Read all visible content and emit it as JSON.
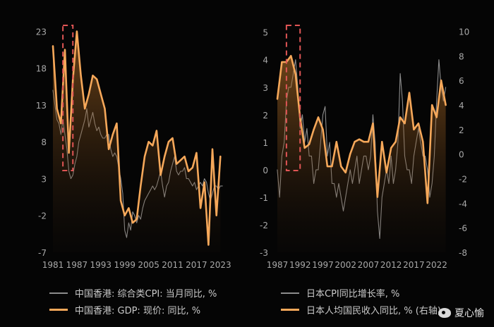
{
  "chart_data": [
    {
      "type": "line",
      "x_ticks": [
        "1981",
        "1987",
        "1993",
        "1999",
        "2005",
        "2011",
        "2017",
        "2023"
      ],
      "y_ticks": [
        -7,
        -2,
        3,
        8,
        13,
        18,
        23
      ],
      "ylim": [
        -7,
        24
      ],
      "xlim": [
        1981,
        2024
      ],
      "highlight_x": [
        1983.5,
        1986
      ],
      "series": [
        {
          "name": "中国香港: 综合类CPI: 当月同比, %",
          "color": "#8c8c8c",
          "x": [
            1981,
            1981.5,
            1982,
            1982.5,
            1983,
            1983.5,
            1984,
            1984.5,
            1985,
            1985.5,
            1986,
            1986.5,
            1987,
            1987.5,
            1988,
            1988.5,
            1989,
            1989.5,
            1990,
            1990.5,
            1991,
            1991.5,
            1992,
            1992.5,
            1993,
            1993.5,
            1994,
            1994.5,
            1995,
            1995.5,
            1996,
            1996.5,
            1997,
            1997.5,
            1998,
            1998.5,
            1999,
            1999.5,
            2000,
            2000.5,
            2001,
            2001.5,
            2002,
            2002.5,
            2003,
            2003.5,
            2004,
            2004.5,
            2005,
            2005.5,
            2006,
            2006.5,
            2007,
            2007.5,
            2008,
            2008.5,
            2009,
            2009.5,
            2010,
            2010.5,
            2011,
            2011.5,
            2012,
            2012.5,
            2013,
            2013.5,
            2014,
            2014.5,
            2015,
            2015.5,
            2016,
            2016.5,
            2017,
            2017.5,
            2018,
            2018.5,
            2019,
            2019.5,
            2020,
            2020.5,
            2021,
            2021.5,
            2022,
            2022.5,
            2023,
            2023.5
          ],
          "values": [
            15,
            13,
            11,
            10.5,
            9,
            11,
            9,
            7,
            4,
            3,
            3.5,
            5,
            6,
            8,
            9,
            10,
            11,
            12.5,
            10,
            11,
            12,
            10.5,
            9.5,
            10,
            9,
            8.5,
            8.5,
            9,
            9,
            7,
            6,
            6.5,
            6,
            4.5,
            3,
            1,
            -4,
            -5,
            -3,
            -4,
            -1.5,
            -2,
            -3,
            -2,
            -2.5,
            -1,
            0,
            0.5,
            1,
            1.5,
            2,
            1.5,
            2,
            3,
            4,
            2,
            0.5,
            2,
            2.5,
            4,
            5,
            6,
            4,
            3.5,
            4,
            4,
            4.5,
            3,
            3,
            2.5,
            2,
            2.5,
            1.5,
            2,
            2.5,
            2,
            3,
            2.5,
            1,
            0,
            1,
            2,
            2,
            1.5,
            2,
            2
          ]
        },
        {
          "name": "中国香港: GDP: 现价: 同比, %",
          "color": "#f6a85a",
          "x": [
            1981,
            1982,
            1983,
            1984,
            1985,
            1986,
            1987,
            1988,
            1989,
            1990,
            1991,
            1992,
            1993,
            1994,
            1995,
            1996,
            1997,
            1998,
            1999,
            2000,
            2001,
            2002,
            2003,
            2004,
            2005,
            2006,
            2007,
            2008,
            2009,
            2010,
            2011,
            2012,
            2013,
            2014,
            2015,
            2016,
            2017,
            2018,
            2019,
            2020,
            2021,
            2022,
            2023
          ],
          "values": [
            21,
            12.5,
            10.5,
            20.5,
            6.5,
            16.5,
            23,
            17,
            12.5,
            14.5,
            17,
            16.5,
            14.5,
            12.5,
            7,
            9,
            10.5,
            0,
            -2,
            -1,
            -3,
            -2.5,
            2,
            6,
            8,
            7.5,
            9.5,
            3.5,
            6,
            8,
            8.5,
            5,
            5.5,
            6,
            4,
            4.5,
            6.5,
            -1,
            2.5,
            -6,
            7,
            -2,
            6
          ]
        }
      ]
    },
    {
      "type": "line",
      "x_ticks": [
        "1987",
        "1992",
        "1997",
        "2002",
        "2007",
        "2012",
        "2017",
        "2022"
      ],
      "y_ticks": [
        -3,
        -2,
        -1,
        0,
        1,
        2,
        3,
        4,
        5
      ],
      "y2_ticks": [
        -8,
        -6,
        -4,
        -2,
        0,
        2,
        4,
        6,
        8,
        10
      ],
      "ylim": [
        -3,
        5.3
      ],
      "y2lim": [
        -8,
        10.6
      ],
      "xlim": [
        1987,
        2025
      ],
      "highlight_x": [
        1989,
        1992
      ],
      "series": [
        {
          "name": "日本CPI同比增长率, %",
          "color": "#8c8c8c",
          "axis": "left",
          "x": [
            1987,
            1987.5,
            1988,
            1988.5,
            1989,
            1989.5,
            1990,
            1990.5,
            1991,
            1991.5,
            1992,
            1992.5,
            1993,
            1993.5,
            1994,
            1994.5,
            1995,
            1995.5,
            1996,
            1996.5,
            1997,
            1997.5,
            1998,
            1998.5,
            1999,
            1999.5,
            2000,
            2000.5,
            2001,
            2001.5,
            2002,
            2002.5,
            2003,
            2003.5,
            2004,
            2004.5,
            2005,
            2005.5,
            2006,
            2006.5,
            2007,
            2007.5,
            2008,
            2008.5,
            2009,
            2009.5,
            2010,
            2010.5,
            2011,
            2011.5,
            2012,
            2012.5,
            2013,
            2013.5,
            2014,
            2014.5,
            2015,
            2015.5,
            2016,
            2016.5,
            2017,
            2017.5,
            2018,
            2018.5,
            2019,
            2019.5,
            2020,
            2020.5,
            2021,
            2021.5,
            2022,
            2022.5,
            2023,
            2023.5,
            2024
          ],
          "values": [
            0,
            -1,
            0.5,
            1,
            2.5,
            3,
            3,
            3.5,
            4,
            3,
            1.5,
            2,
            1,
            1.5,
            0.5,
            0.5,
            -0.5,
            0,
            0,
            1,
            2,
            2.3,
            0.5,
            1,
            -0.5,
            -0.5,
            -1,
            -0.5,
            -1,
            -1.5,
            -1,
            -0.5,
            0,
            -0.5,
            0,
            0.5,
            -0.5,
            0,
            0.5,
            0.5,
            0,
            0.5,
            2,
            1,
            -1.5,
            -2.5,
            -1,
            -0.5,
            0,
            -0.5,
            0.5,
            -0.5,
            0,
            1,
            3.5,
            2.5,
            0.5,
            0,
            0,
            -0.5,
            0.5,
            1,
            1.5,
            1,
            0.5,
            0.5,
            0,
            -1,
            -0.5,
            0.5,
            2.5,
            4,
            3,
            2.5,
            3
          ]
        },
        {
          "name": "日本人均国民收入同比, % (右轴)",
          "color": "#f6a85a",
          "axis": "right",
          "x": [
            1987,
            1988,
            1989,
            1990,
            1991,
            1992,
            1993,
            1994,
            1995,
            1996,
            1997,
            1998,
            1999,
            2000,
            2001,
            2002,
            2003,
            2004,
            2005,
            2006,
            2007,
            2008,
            2009,
            2010,
            2011,
            2012,
            2013,
            2014,
            2015,
            2016,
            2017,
            2018,
            2019,
            2020,
            2021,
            2022,
            2023,
            2024
          ],
          "values": [
            4.5,
            7.5,
            7.5,
            8,
            6.5,
            3,
            0.5,
            0.8,
            2,
            3,
            2,
            -1,
            -1,
            1,
            -1,
            -1.5,
            0,
            1,
            1.2,
            1,
            1,
            2.5,
            -3.5,
            1,
            -1.5,
            0.5,
            1,
            3,
            2.5,
            5,
            2,
            2.5,
            1,
            -4,
            4,
            3,
            6,
            4
          ]
        }
      ]
    }
  ],
  "legend": {
    "left": [
      {
        "label": "中国香港: 综合类CPI: 当月同比, %"
      },
      {
        "label": "中国香港: GDP: 现价: 同比, %"
      }
    ],
    "right": [
      {
        "label": "日本CPI同比增长率, %"
      },
      {
        "label": "日本人均国民收入同比, % (右轴)"
      }
    ]
  },
  "watermark": "夏心愉",
  "colors": {
    "background": "#050505",
    "gray_line": "#8c8c8c",
    "orange_line": "#f6a85a",
    "highlight_box": "#e05555"
  }
}
